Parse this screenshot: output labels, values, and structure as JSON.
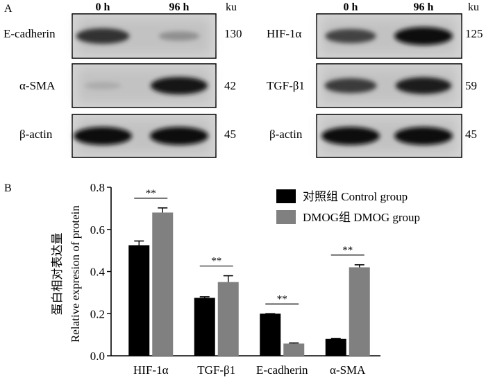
{
  "panel_a": {
    "label": "A",
    "left": {
      "lanes": [
        "0 h",
        "96 h"
      ],
      "unit": "ku",
      "blots": [
        {
          "protein": "E-cadherin",
          "size": "130",
          "intensity": [
            0.8,
            0.3
          ]
        },
        {
          "protein": "α-SMA",
          "size": "42",
          "intensity": [
            0.15,
            0.95
          ]
        },
        {
          "protein": "β-actin",
          "size": "45",
          "intensity": [
            1.0,
            1.0
          ]
        }
      ]
    },
    "right": {
      "lanes": [
        "0 h",
        "96 h"
      ],
      "unit": "ku",
      "blots": [
        {
          "protein": "HIF-1α",
          "size": "125",
          "intensity": [
            0.7,
            1.0
          ]
        },
        {
          "protein": "TGF-β1",
          "size": "59",
          "intensity": [
            0.75,
            0.9
          ]
        },
        {
          "protein": "β-actin",
          "size": "45",
          "intensity": [
            1.0,
            1.0
          ]
        }
      ]
    }
  },
  "chart_data": {
    "panel_label": "B",
    "type": "bar",
    "title": "",
    "categories": [
      "HIF-1α",
      "TGF-β1",
      "E-cadherin",
      "α-SMA"
    ],
    "series": [
      {
        "name": "对照组  Control group",
        "color": "#000000",
        "values": [
          0.525,
          0.275,
          0.2,
          0.08
        ],
        "errors": [
          0.02,
          0.005,
          0.0,
          0.003
        ]
      },
      {
        "name": "DMOG组  DMOG group",
        "color": "#808080",
        "values": [
          0.68,
          0.35,
          0.058,
          0.42
        ],
        "errors": [
          0.022,
          0.03,
          0.003,
          0.012
        ]
      }
    ],
    "ylabel_cn": "蛋白相对表达量",
    "ylabel": "Relative expresion of protein",
    "ylim": [
      0,
      0.8
    ],
    "yticks": [
      "0.0",
      "0.2",
      "0.4",
      "0.6",
      "0.8"
    ],
    "ytick_values": [
      0,
      0.2,
      0.4,
      0.6,
      0.8
    ],
    "significance": [
      "**",
      "**",
      "**",
      "**"
    ],
    "legend_position": "top-right",
    "grid": false
  }
}
